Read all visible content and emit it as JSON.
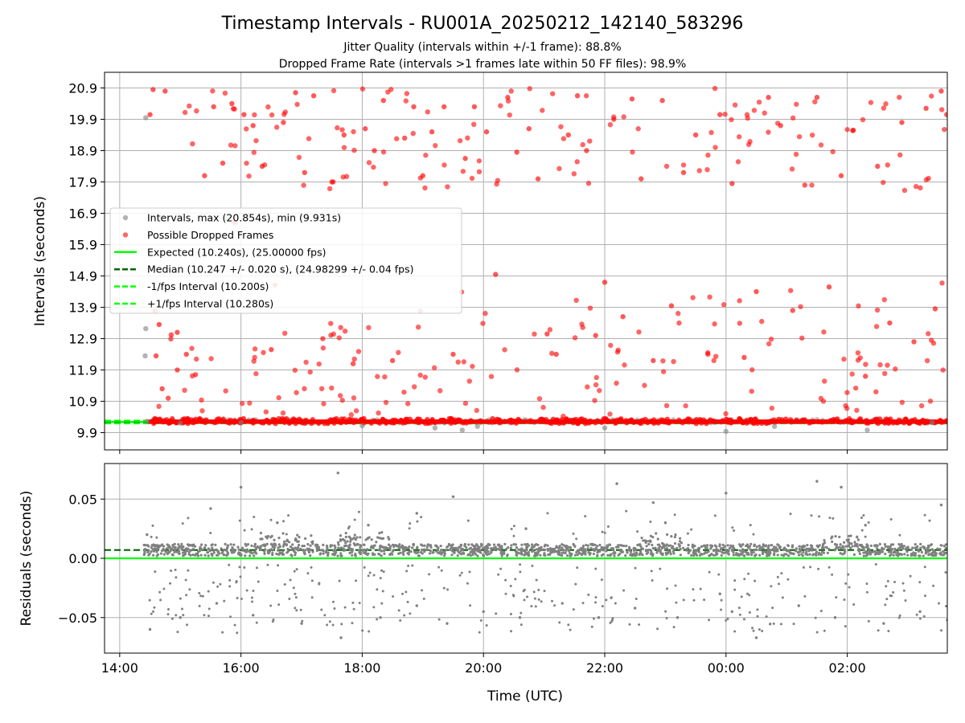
{
  "chart_data": [
    {
      "type": "scatter",
      "title": "Timestamp Intervals - RU001A_20250212_142140_583296",
      "subtitles": [
        "Jitter Quality (intervals within +/-1 frame): 88.8%",
        "Dropped Frame Rate (intervals >1 frames late within 50 FF files): 98.9%"
      ],
      "xlabel": "",
      "ylabel": "Intervals (seconds)",
      "x_unit": "hours since 00:00 UTC on start day",
      "xlim": [
        13.75,
        27.65
      ],
      "ylim": [
        9.35,
        21.4
      ],
      "y_ticks": [
        9.9,
        10.9,
        11.9,
        12.9,
        13.9,
        14.9,
        15.9,
        16.9,
        17.9,
        18.9,
        19.9,
        20.9
      ],
      "y_tick_labels": [
        "9.9",
        "10.9",
        "11.9",
        "12.9",
        "13.9",
        "14.9",
        "15.9",
        "16.9",
        "17.9",
        "18.9",
        "19.9",
        "20.9"
      ],
      "grid": true,
      "legend_position": "center-left",
      "series": [
        {
          "name": "Intervals, max (20.854s), min (9.931s)",
          "color": "#808080",
          "points": [
            [
              14.43,
              19.95
            ],
            [
              14.43,
              13.22
            ],
            [
              14.42,
              12.35
            ],
            [
              14.45,
              10.26
            ],
            [
              15.0,
              10.2
            ],
            [
              16.0,
              10.22
            ],
            [
              18.0,
              10.12
            ],
            [
              19.2,
              10.05
            ],
            [
              19.65,
              9.98
            ],
            [
              19.9,
              10.1
            ],
            [
              22.0,
              10.05
            ],
            [
              24.0,
              9.94
            ],
            [
              24.8,
              10.1
            ],
            [
              26.33,
              9.98
            ],
            [
              27.4,
              10.22
            ]
          ]
        },
        {
          "name": "Possible Dropped Frames",
          "color": "#ff0000",
          "points": [
            [
              14.5,
              20.05
            ],
            [
              14.55,
              20.85
            ],
            [
              14.75,
              20.8
            ],
            [
              14.65,
              13.35
            ],
            [
              14.85,
              13.02
            ],
            [
              14.95,
              13.1
            ],
            [
              14.6,
              12.35
            ],
            [
              14.7,
              11.3
            ],
            [
              14.8,
              11.0
            ],
            [
              14.95,
              11.9
            ],
            [
              15.1,
              12.4
            ],
            [
              15.25,
              11.75
            ],
            [
              15.4,
              18.1
            ],
            [
              15.55,
              20.3
            ],
            [
              15.7,
              18.5
            ],
            [
              15.85,
              20.4
            ],
            [
              15.9,
              16.6
            ],
            [
              16.05,
              20.05
            ],
            [
              16.2,
              19.7
            ],
            [
              16.35,
              18.4
            ],
            [
              16.5,
              12.55
            ],
            [
              16.7,
              19.8
            ],
            [
              16.9,
              20.75
            ],
            [
              17.05,
              18.2
            ],
            [
              17.2,
              20.65
            ],
            [
              17.35,
              12.9
            ],
            [
              17.5,
              17.9
            ],
            [
              17.7,
              19.4
            ],
            [
              17.85,
              12.1
            ],
            [
              18.05,
              19.6
            ],
            [
              18.2,
              18.9
            ],
            [
              18.35,
              20.5
            ],
            [
              18.5,
              12.2
            ],
            [
              18.7,
              19.3
            ],
            [
              18.85,
              20.3
            ],
            [
              19.0,
              18.1
            ],
            [
              19.15,
              19.5
            ],
            [
              19.35,
              20.3
            ],
            [
              19.5,
              12.4
            ],
            [
              19.7,
              18.65
            ],
            [
              19.85,
              20.3
            ],
            [
              20.05,
              19.5
            ],
            [
              20.2,
              14.95
            ],
            [
              20.4,
              20.6
            ],
            [
              20.55,
              18.85
            ],
            [
              20.75,
              19.6
            ],
            [
              20.9,
              18.0
            ],
            [
              21.05,
              13.05
            ],
            [
              21.2,
              12.4
            ],
            [
              21.4,
              19.4
            ],
            [
              21.55,
              20.65
            ],
            [
              21.7,
              18.9
            ],
            [
              21.85,
              13.0
            ],
            [
              22.0,
              14.7
            ],
            [
              22.15,
              19.9
            ],
            [
              22.3,
              13.6
            ],
            [
              22.45,
              20.55
            ],
            [
              22.6,
              18.0
            ],
            [
              22.8,
              12.2
            ],
            [
              22.95,
              20.5
            ],
            [
              23.1,
              13.95
            ],
            [
              23.3,
              18.2
            ],
            [
              23.5,
              19.4
            ],
            [
              23.7,
              12.45
            ],
            [
              23.9,
              20.05
            ],
            [
              24.1,
              17.85
            ],
            [
              24.3,
              12.3
            ],
            [
              24.5,
              14.4
            ],
            [
              24.7,
              20.6
            ],
            [
              24.9,
              19.7
            ],
            [
              25.1,
              13.8
            ],
            [
              25.3,
              17.8
            ],
            [
              25.5,
              20.6
            ],
            [
              25.7,
              14.55
            ],
            [
              25.9,
              18.1
            ],
            [
              26.1,
              19.55
            ],
            [
              26.3,
              11.7
            ],
            [
              26.5,
              18.4
            ],
            [
              26.7,
              13.4
            ],
            [
              26.9,
              19.8
            ],
            [
              27.1,
              12.8
            ],
            [
              27.3,
              20.25
            ],
            [
              27.45,
              13.85
            ],
            [
              27.55,
              20.8
            ],
            [
              27.64,
              20.05
            ]
          ]
        }
      ],
      "lines": [
        {
          "name": "Expected (10.240s), (25.00000 fps)",
          "y": 10.24,
          "color": "#00ff00",
          "style": "solid"
        },
        {
          "name": "Median (10.247 +/- 0.020 s), (24.98299 +/- 0.04 fps)",
          "y": 10.247,
          "color": "#006400",
          "style": "dashed"
        },
        {
          "name": "-1/fps Interval (10.200s)",
          "y": 10.2,
          "color": "#00ff00",
          "style": "dashed"
        },
        {
          "name": "+1/fps Interval (10.280s)",
          "y": 10.28,
          "color": "#00ff00",
          "style": "dashed"
        }
      ]
    },
    {
      "type": "scatter",
      "xlabel": "Time (UTC)",
      "ylabel": "Residuals (seconds)",
      "xlim": [
        13.75,
        27.65
      ],
      "ylim": [
        -0.08,
        0.08
      ],
      "x_ticks": [
        14,
        16,
        18,
        20,
        22,
        24,
        26
      ],
      "x_tick_labels": [
        "14:00",
        "16:00",
        "18:00",
        "20:00",
        "22:00",
        "00:00",
        "02:00"
      ],
      "y_ticks": [
        -0.05,
        0.0,
        0.05
      ],
      "y_tick_labels": [
        "−0.05",
        "0.00",
        "0.05"
      ],
      "grid": true,
      "series": [
        {
          "color": "#808080",
          "band": {
            "x_range": [
              14.4,
              27.65
            ],
            "y_center": 0.007,
            "y_spread": 0.005
          },
          "points": [
            [
              16.0,
              0.06
            ],
            [
              15.5,
              0.042
            ],
            [
              17.6,
              0.072
            ],
            [
              18.9,
              0.038
            ],
            [
              19.5,
              0.052
            ],
            [
              22.2,
              0.063
            ],
            [
              22.8,
              0.047
            ],
            [
              24.0,
              0.055
            ],
            [
              25.5,
              0.065
            ],
            [
              25.9,
              0.06
            ],
            [
              27.55,
              0.045
            ],
            [
              14.45,
              0.02
            ],
            [
              16.6,
              0.03
            ],
            [
              18.1,
              0.028
            ],
            [
              20.7,
              0.025
            ],
            [
              23.0,
              0.03
            ],
            [
              26.3,
              0.028
            ],
            [
              14.5,
              -0.06
            ],
            [
              15.0,
              -0.05
            ],
            [
              15.6,
              -0.038
            ],
            [
              16.2,
              -0.048
            ],
            [
              17.0,
              -0.055
            ],
            [
              17.65,
              -0.067
            ],
            [
              18.3,
              -0.05
            ],
            [
              18.9,
              -0.04
            ],
            [
              19.4,
              -0.055
            ],
            [
              20.0,
              -0.045
            ],
            [
              20.6,
              -0.05
            ],
            [
              21.3,
              -0.038
            ],
            [
              21.9,
              -0.05
            ],
            [
              22.5,
              -0.042
            ],
            [
              23.2,
              -0.05
            ],
            [
              23.9,
              -0.03
            ],
            [
              24.1,
              -0.045
            ],
            [
              24.5,
              -0.067
            ],
            [
              25.2,
              -0.04
            ],
            [
              25.8,
              -0.05
            ],
            [
              26.6,
              -0.055
            ],
            [
              27.2,
              -0.045
            ],
            [
              27.65,
              -0.052
            ]
          ]
        }
      ],
      "lines": [
        {
          "y": 0.0,
          "color": "#00ff00",
          "style": "solid"
        },
        {
          "y": 0.007,
          "color": "#006400",
          "style": "dashed"
        }
      ]
    }
  ]
}
